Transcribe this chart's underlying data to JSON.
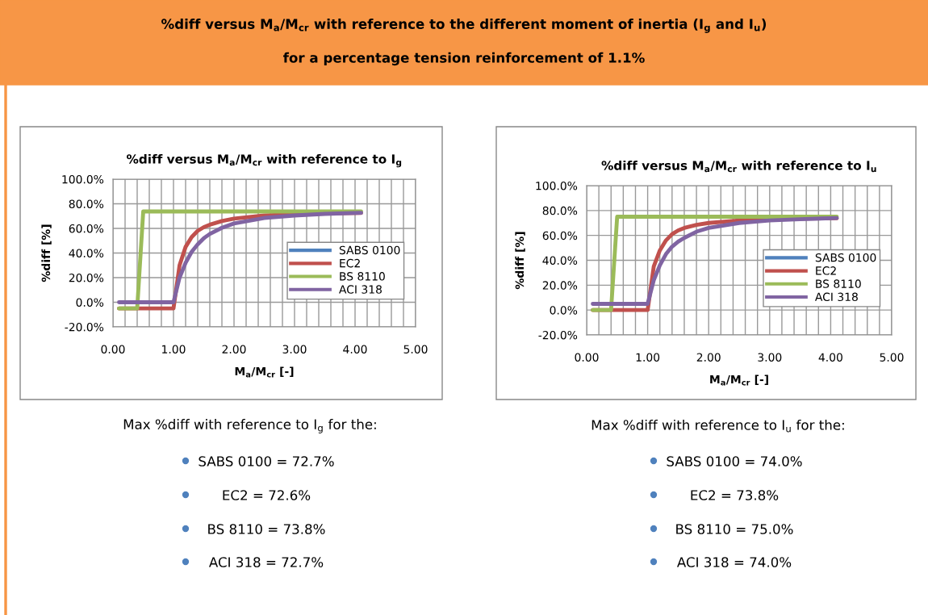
{
  "chart_data": [
    {
      "type": "other",
      "title": "%diff versus M$_{a}$/M$_{cr}$ with reference to the different moment of inertia (I$_{g}$ and I$_{u}$)",
      "subtitle": "for a percentage tension reinforcement of 1.1%"
    },
    {
      "type": "line",
      "title": "%diff versus M$_{a}$/M$_{cr}$ with reference to I$_{g}$",
      "xlabel": "M$_{a}$/M$_{cr}$ [-]",
      "ylabel": "%diff [%]",
      "xlim": [
        0,
        5
      ],
      "ylim": [
        -20,
        100
      ],
      "xticks": [
        {
          "value": 0,
          "label": "0.00"
        },
        {
          "value": 0.2,
          "label": null
        },
        {
          "value": 0.4,
          "label": null
        },
        {
          "value": 0.6,
          "label": null
        },
        {
          "value": 0.8,
          "label": null
        },
        {
          "value": 1,
          "label": "1.00"
        },
        {
          "value": 1.2,
          "label": null
        },
        {
          "value": 1.4,
          "label": null
        },
        {
          "value": 1.6,
          "label": null
        },
        {
          "value": 1.8,
          "label": null
        },
        {
          "value": 2,
          "label": "2.00"
        },
        {
          "value": 2.2,
          "label": null
        },
        {
          "value": 2.4,
          "label": null
        },
        {
          "value": 2.6,
          "label": null
        },
        {
          "value": 2.8,
          "label": null
        },
        {
          "value": 3,
          "label": "3.00"
        },
        {
          "value": 3.2,
          "label": null
        },
        {
          "value": 3.4,
          "label": null
        },
        {
          "value": 3.6,
          "label": null
        },
        {
          "value": 3.8,
          "label": null
        },
        {
          "value": 4,
          "label": "4.00"
        },
        {
          "value": 4.2,
          "label": null
        },
        {
          "value": 4.4,
          "label": null
        },
        {
          "value": 4.6,
          "label": null
        },
        {
          "value": 4.8,
          "label": null
        },
        {
          "value": 5,
          "label": "5.00"
        }
      ],
      "yticks": [
        {
          "value": -20,
          "label": "-20.0%"
        },
        {
          "value": 0,
          "label": "0.0%"
        },
        {
          "value": 20,
          "label": "20.0%"
        },
        {
          "value": 40,
          "label": "40.0%"
        },
        {
          "value": 60,
          "label": "60.0%"
        },
        {
          "value": 80,
          "label": "80.0%"
        },
        {
          "value": 100,
          "label": "100.0%"
        }
      ],
      "grid": true,
      "legend": "right",
      "marker": "none",
      "line_style": "solid",
      "series": [
        {
          "name": "SABS 0100",
          "color": "#4f81bd"
        },
        {
          "name": "EC2",
          "color": "#c0504d",
          "x": [
            0.1,
            1.0,
            1.1,
            1.2,
            1.3,
            1.4,
            1.5,
            1.6,
            1.8,
            2.0,
            2.5,
            3.0,
            3.5,
            4.1
          ],
          "values": [
            -5,
            -5,
            30,
            45,
            53,
            58,
            61,
            63,
            66,
            68,
            70.5,
            71.5,
            72.2,
            72.6
          ]
        },
        {
          "name": "BS 8110",
          "color": "#9bbb59",
          "x": [
            0.1,
            0.4,
            0.5,
            4.1
          ],
          "values": [
            -5,
            -5,
            73.8,
            73.8
          ]
        },
        {
          "name": "ACI 318",
          "color": "#8064a2",
          "x": [
            0.1,
            1.0,
            1.1,
            1.2,
            1.3,
            1.4,
            1.5,
            1.6,
            1.8,
            2.0,
            2.5,
            3.0,
            3.5,
            4.1
          ],
          "values": [
            0,
            0,
            20,
            32,
            41,
            47,
            52,
            55.5,
            60.5,
            64,
            68.5,
            70.5,
            71.8,
            72.7
          ]
        }
      ],
      "annotations": [
        "Max %diff with reference to I$_{g}$ for the:",
        "SABS 0100 = 72.7%",
        "EC2 = 72.6%",
        "BS 8110 = 73.8%",
        "ACI 318 = 72.7%"
      ]
    },
    {
      "type": "line",
      "title": "%diff versus M$_{a}$/M$_{cr}$ with reference to I$_{u}$",
      "xlabel": "M$_{a}$/M$_{cr}$ [-]",
      "ylabel": "%diff [%]",
      "xlim": [
        0,
        5
      ],
      "ylim": [
        -20,
        100
      ],
      "xticks": [
        {
          "value": 0,
          "label": "0.00"
        },
        {
          "value": 0.2,
          "label": null
        },
        {
          "value": 0.4,
          "label": null
        },
        {
          "value": 0.6,
          "label": null
        },
        {
          "value": 0.8,
          "label": null
        },
        {
          "value": 1,
          "label": "1.00"
        },
        {
          "value": 1.2,
          "label": null
        },
        {
          "value": 1.4,
          "label": null
        },
        {
          "value": 1.6,
          "label": null
        },
        {
          "value": 1.8,
          "label": null
        },
        {
          "value": 2,
          "label": "2.00"
        },
        {
          "value": 2.2,
          "label": null
        },
        {
          "value": 2.4,
          "label": null
        },
        {
          "value": 2.6,
          "label": null
        },
        {
          "value": 2.8,
          "label": null
        },
        {
          "value": 3,
          "label": "3.00"
        },
        {
          "value": 3.2,
          "label": null
        },
        {
          "value": 3.4,
          "label": null
        },
        {
          "value": 3.6,
          "label": null
        },
        {
          "value": 3.8,
          "label": null
        },
        {
          "value": 4,
          "label": "4.00"
        },
        {
          "value": 4.2,
          "label": null
        },
        {
          "value": 4.4,
          "label": null
        },
        {
          "value": 4.6,
          "label": null
        },
        {
          "value": 4.8,
          "label": null
        },
        {
          "value": 5,
          "label": "5.00"
        }
      ],
      "yticks": [
        {
          "value": -20,
          "label": "-20.0%"
        },
        {
          "value": 0,
          "label": "0.0%"
        },
        {
          "value": 20,
          "label": "20.0%"
        },
        {
          "value": 40,
          "label": "40.0%"
        },
        {
          "value": 60,
          "label": "60.0%"
        },
        {
          "value": 80,
          "label": "80.0%"
        },
        {
          "value": 100,
          "label": "100.0%"
        }
      ],
      "grid": true,
      "legend": "right",
      "marker": "none",
      "line_style": "solid",
      "series": [
        {
          "name": "SABS 0100",
          "color": "#4f81bd"
        },
        {
          "name": "EC2",
          "color": "#c0504d",
          "x": [
            0.1,
            1.0,
            1.1,
            1.2,
            1.3,
            1.4,
            1.5,
            1.6,
            1.8,
            2.0,
            2.5,
            3.0,
            3.5,
            4.1
          ],
          "values": [
            0,
            0,
            35,
            48,
            56,
            61,
            64,
            66,
            68.5,
            70,
            72,
            73,
            73.5,
            73.8
          ]
        },
        {
          "name": "BS 8110",
          "color": "#9bbb59",
          "x": [
            0.1,
            0.4,
            0.5,
            4.1
          ],
          "values": [
            0,
            0,
            75,
            75
          ]
        },
        {
          "name": "ACI 318",
          "color": "#8064a2",
          "x": [
            0.1,
            1.0,
            1.1,
            1.2,
            1.3,
            1.4,
            1.5,
            1.6,
            1.8,
            2.0,
            2.5,
            3.0,
            3.5,
            4.1
          ],
          "values": [
            5,
            5,
            24,
            36,
            45,
            51,
            55,
            58,
            63,
            66,
            70,
            72,
            73,
            74.0
          ]
        }
      ],
      "annotations": [
        "Max %diff with reference to I$_{u}$ for the:",
        "SABS 0100 = 74.0%",
        "EC2 = 73.8%",
        "BS 8110 = 75.0%",
        "ACI 318 = 74.0%"
      ]
    }
  ]
}
